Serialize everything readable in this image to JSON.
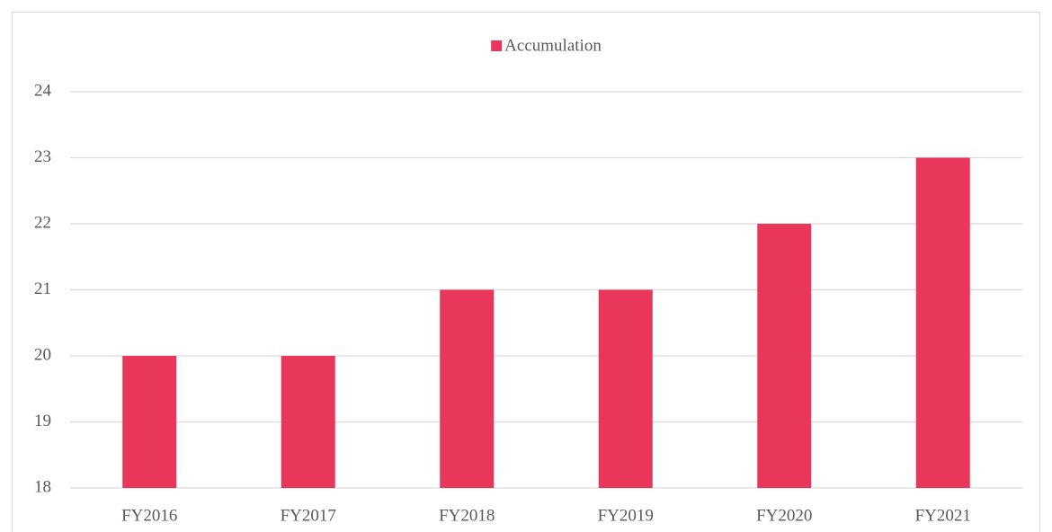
{
  "chart_data": {
    "type": "bar",
    "categories": [
      "FY2016",
      "FY2017",
      "FY2018",
      "FY2019",
      "FY2020",
      "FY2021"
    ],
    "series": [
      {
        "name": "Accumulation",
        "color": "#e8375a",
        "values": [
          20,
          20,
          21,
          21,
          22,
          23
        ]
      }
    ],
    "ylim": [
      18,
      24
    ],
    "yticks": [
      18,
      19,
      20,
      21,
      22,
      23,
      24
    ],
    "grid": true,
    "legend": "top"
  }
}
